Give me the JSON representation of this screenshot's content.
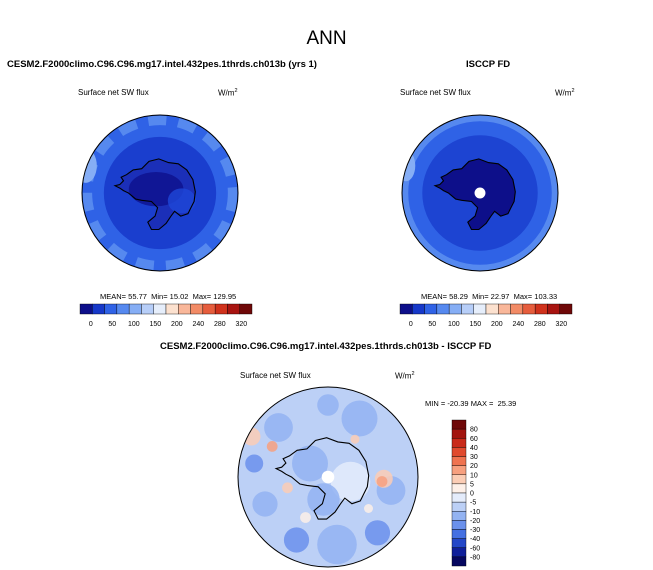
{
  "figure": {
    "title": "ANN"
  },
  "chart_data": [
    {
      "type": "heatmap",
      "projection": "south-polar-stereographic",
      "title": "CESM2.F2000climo.C96.C96.mg17.intel.432pes.1thrds.ch013b (yrs 1)",
      "variable_label": "Surface net SW flux",
      "units_label": "W/m",
      "units_sup": "2",
      "stats": {
        "mean_label": "MEAN=",
        "mean": "55.77",
        "min_label": "Min=",
        "min": "15.02",
        "max_label": "Max=",
        "max": "129.95"
      },
      "colorbar": {
        "orientation": "horizontal",
        "levels": [
          "0",
          "50",
          "100",
          "150",
          "200",
          "240",
          "280",
          "320"
        ],
        "colors": [
          "#0d0f8a",
          "#1638c9",
          "#2f62e6",
          "#5689ef",
          "#86aef5",
          "#b7cef8",
          "#e6eefb",
          "#fce1cf",
          "#f9b79a",
          "#f28b66",
          "#e65d3d",
          "#d0321c",
          "#a81410",
          "#6f0808"
        ]
      }
    },
    {
      "type": "heatmap",
      "projection": "south-polar-stereographic",
      "title": "ISCCP FD",
      "variable_label": "Surface net SW flux",
      "units_label": "W/m",
      "units_sup": "2",
      "stats": {
        "mean_label": "MEAN=",
        "mean": "58.29",
        "min_label": "Min=",
        "min": "22.97",
        "max_label": "Max=",
        "max": "103.33"
      },
      "colorbar": {
        "orientation": "horizontal",
        "levels": [
          "0",
          "50",
          "100",
          "150",
          "200",
          "240",
          "280",
          "320"
        ],
        "colors": [
          "#0d0f8a",
          "#1638c9",
          "#2f62e6",
          "#5689ef",
          "#86aef5",
          "#b7cef8",
          "#e6eefb",
          "#fce1cf",
          "#f9b79a",
          "#f28b66",
          "#e65d3d",
          "#d0321c",
          "#a81410",
          "#6f0808"
        ]
      }
    },
    {
      "type": "heatmap",
      "projection": "south-polar-stereographic",
      "title": "CESM2.F2000climo.C96.C96.mg17.intel.432pes.1thrds.ch013b - ISCCP FD",
      "variable_label": "Surface net SW flux",
      "units_label": "W/m",
      "units_sup": "2",
      "stats": {
        "min_label": "MIN =",
        "min": "-20.39",
        "max_label": "MAX =",
        "max": "25.39"
      },
      "colorbar": {
        "orientation": "vertical",
        "levels": [
          "80",
          "60",
          "40",
          "30",
          "20",
          "10",
          "5",
          "0",
          "-5",
          "-10",
          "-20",
          "-30",
          "-40",
          "-60",
          "-80"
        ],
        "colors": [
          "#6f0808",
          "#a3150f",
          "#c92a1a",
          "#e04a2e",
          "#ef7350",
          "#f7a07f",
          "#fbcdb5",
          "#fdf0e8",
          "#e4ecfb",
          "#bcd0f6",
          "#93b3f2",
          "#6b91ec",
          "#4470e2",
          "#2347c8",
          "#0f1f9a",
          "#06075f"
        ]
      }
    }
  ]
}
